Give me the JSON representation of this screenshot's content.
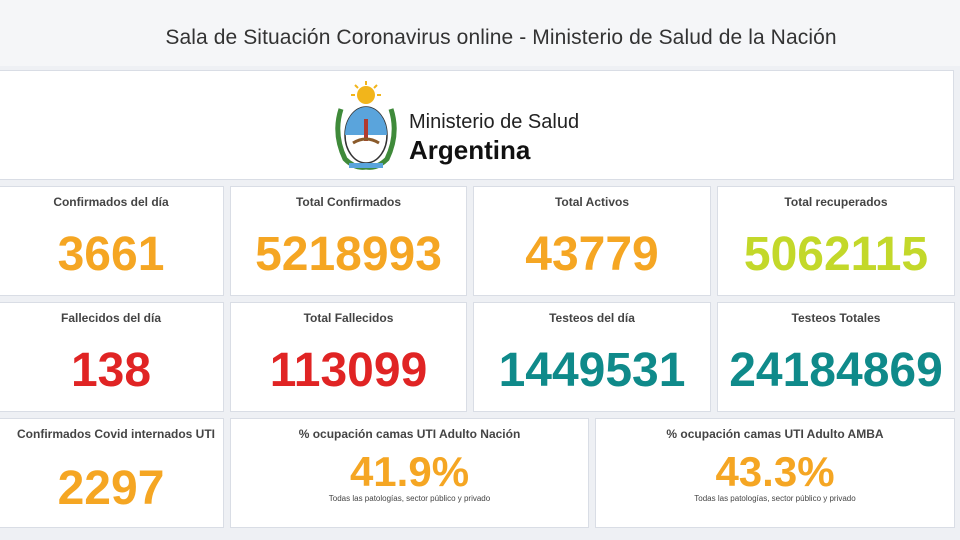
{
  "header": {
    "title": "Sala de Situación Coronavirus online - Ministerio de Salud de la Nación"
  },
  "logo": {
    "line1": "Ministerio de Salud",
    "line2": "Argentina"
  },
  "cards": {
    "confirmados_dia": {
      "label": "Confirmados del día",
      "value": "3661"
    },
    "total_confirmados": {
      "label": "Total Confirmados",
      "value": "5218993"
    },
    "total_activos": {
      "label": "Total Activos",
      "value": "43779"
    },
    "total_recuperados": {
      "label": "Total recuperados",
      "value": "5062115"
    },
    "fallecidos_dia": {
      "label": "Fallecidos del día",
      "value": "138"
    },
    "total_fallecidos": {
      "label": "Total Fallecidos",
      "value": "113099"
    },
    "testeos_dia": {
      "label": "Testeos del día",
      "value": "1449531"
    },
    "testeos_totales": {
      "label": "Testeos Totales",
      "value": "24184869"
    },
    "internados_uti": {
      "label": "Confirmados Covid internados UTI",
      "value": "2297"
    },
    "ocupacion_nacion": {
      "label": "% ocupación camas UTI Adulto Nación",
      "value": "41.9%",
      "sub": "Todas las patologías, sector público y privado"
    },
    "ocupacion_amba": {
      "label": "% ocupación camas UTI Adulto AMBA",
      "value": "43.3%",
      "sub": "Todas las patologías, sector público y privado"
    }
  },
  "colors": {
    "orange": "#f5a623",
    "lime": "#c3d82a",
    "red": "#e02424",
    "teal": "#0f8a8a"
  }
}
